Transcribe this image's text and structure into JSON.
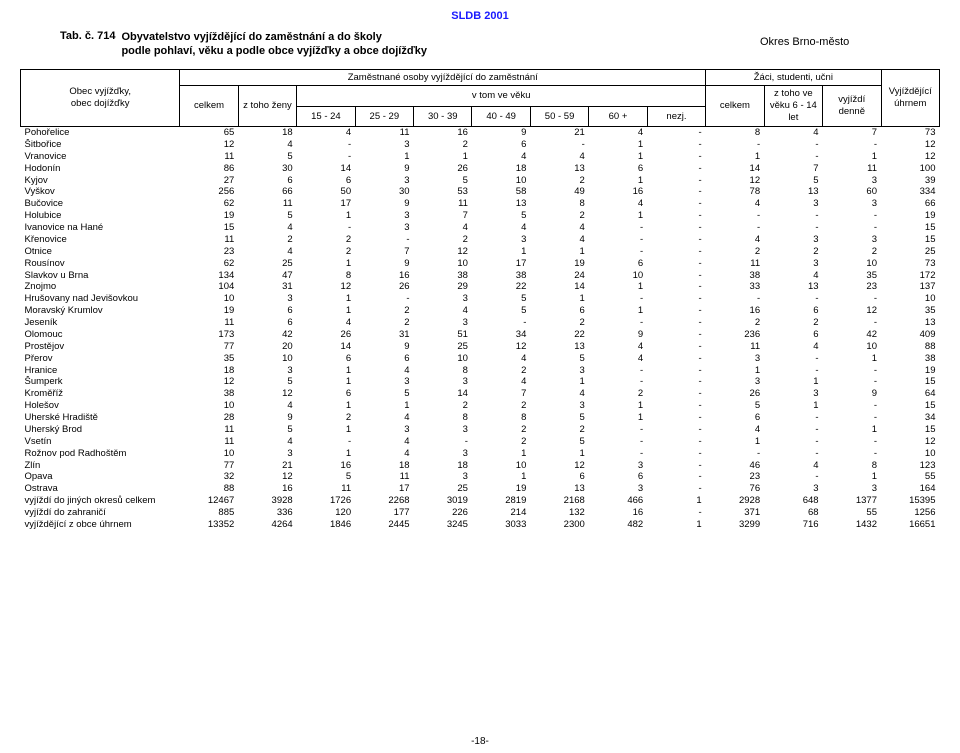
{
  "header": "SLDB 2001",
  "table_label": "Tab. č. 714",
  "title_line1": "Obyvatelstvo vyjíždějící do zaměstnání a do školy",
  "title_line2": "podle pohlaví, věku a podle obce vyjížďky a obce dojížďky",
  "okres": "Okres Brno-město",
  "footer": "-18-",
  "colhead": {
    "rowlabel_l1": "Obec vyjížďky,",
    "rowlabel_l2": "obec dojížďky",
    "zam_group": "Zaměstnané osoby vyjíždějící do zaměstnání",
    "celkem": "celkem",
    "z_toho_zeny": "z toho ženy",
    "v_tom_veku": "v tom ve věku",
    "age_15_24": "15 - 24",
    "age_25_29": "25 - 29",
    "age_30_39": "30 - 39",
    "age_40_49": "40 - 49",
    "age_50_59": "50 - 59",
    "age_60p": "60 +",
    "nezj": "nezj.",
    "zaci_group": "Žáci, studenti, učni",
    "z_toho_6_14_l1": "z toho ve",
    "z_toho_6_14_l2": "věku 6 - 14",
    "z_toho_6_14_l3": "let",
    "vyjizdi_l1": "vyjíždí",
    "vyjizdi_l2": "denně",
    "uhrnem_l1": "Vyjíždějící",
    "uhrnem_l2": "úhrnem"
  },
  "rows": [
    {
      "label": "Pohořelice",
      "v": [
        "65",
        "18",
        "4",
        "11",
        "16",
        "9",
        "21",
        "4",
        "-",
        "8",
        "4",
        "7",
        "73"
      ]
    },
    {
      "label": "Šitbořice",
      "v": [
        "12",
        "4",
        "-",
        "3",
        "2",
        "6",
        "-",
        "1",
        "-",
        "-",
        "-",
        "-",
        "12"
      ]
    },
    {
      "label": "Vranovice",
      "v": [
        "11",
        "5",
        "-",
        "1",
        "1",
        "4",
        "4",
        "1",
        "-",
        "1",
        "-",
        "1",
        "12"
      ]
    },
    {
      "label": "Hodonín",
      "v": [
        "86",
        "30",
        "14",
        "9",
        "26",
        "18",
        "13",
        "6",
        "-",
        "14",
        "7",
        "11",
        "100"
      ]
    },
    {
      "label": "Kyjov",
      "v": [
        "27",
        "6",
        "6",
        "3",
        "5",
        "10",
        "2",
        "1",
        "-",
        "12",
        "5",
        "3",
        "39"
      ]
    },
    {
      "label": "Vyškov",
      "v": [
        "256",
        "66",
        "50",
        "30",
        "53",
        "58",
        "49",
        "16",
        "-",
        "78",
        "13",
        "60",
        "334"
      ]
    },
    {
      "label": "Bučovice",
      "v": [
        "62",
        "11",
        "17",
        "9",
        "11",
        "13",
        "8",
        "4",
        "-",
        "4",
        "3",
        "3",
        "66"
      ]
    },
    {
      "label": "Holubice",
      "v": [
        "19",
        "5",
        "1",
        "3",
        "7",
        "5",
        "2",
        "1",
        "-",
        "-",
        "-",
        "-",
        "19"
      ]
    },
    {
      "label": "Ivanovice na Hané",
      "v": [
        "15",
        "4",
        "-",
        "3",
        "4",
        "4",
        "4",
        "-",
        "-",
        "-",
        "-",
        "-",
        "15"
      ]
    },
    {
      "label": "Křenovice",
      "v": [
        "11",
        "2",
        "2",
        "-",
        "2",
        "3",
        "4",
        "-",
        "-",
        "4",
        "3",
        "3",
        "15"
      ]
    },
    {
      "label": "Otnice",
      "v": [
        "23",
        "4",
        "2",
        "7",
        "12",
        "1",
        "1",
        "-",
        "-",
        "2",
        "2",
        "2",
        "25"
      ]
    },
    {
      "label": "Rousínov",
      "v": [
        "62",
        "25",
        "1",
        "9",
        "10",
        "17",
        "19",
        "6",
        "-",
        "11",
        "3",
        "10",
        "73"
      ]
    },
    {
      "label": "Slavkov u Brna",
      "v": [
        "134",
        "47",
        "8",
        "16",
        "38",
        "38",
        "24",
        "10",
        "-",
        "38",
        "4",
        "35",
        "172"
      ]
    },
    {
      "label": "Znojmo",
      "v": [
        "104",
        "31",
        "12",
        "26",
        "29",
        "22",
        "14",
        "1",
        "-",
        "33",
        "13",
        "23",
        "137"
      ]
    },
    {
      "label": "Hrušovany nad Jevišovkou",
      "v": [
        "10",
        "3",
        "1",
        "-",
        "3",
        "5",
        "1",
        "-",
        "-",
        "-",
        "-",
        "-",
        "10"
      ]
    },
    {
      "label": "Moravský Krumlov",
      "v": [
        "19",
        "6",
        "1",
        "2",
        "4",
        "5",
        "6",
        "1",
        "-",
        "16",
        "6",
        "12",
        "35"
      ]
    },
    {
      "label": "Jeseník",
      "v": [
        "11",
        "6",
        "4",
        "2",
        "3",
        "-",
        "2",
        "-",
        "-",
        "2",
        "2",
        "-",
        "13"
      ]
    },
    {
      "label": "Olomouc",
      "v": [
        "173",
        "42",
        "26",
        "31",
        "51",
        "34",
        "22",
        "9",
        "-",
        "236",
        "6",
        "42",
        "409"
      ]
    },
    {
      "label": "Prostějov",
      "v": [
        "77",
        "20",
        "14",
        "9",
        "25",
        "12",
        "13",
        "4",
        "-",
        "11",
        "4",
        "10",
        "88"
      ]
    },
    {
      "label": "Přerov",
      "v": [
        "35",
        "10",
        "6",
        "6",
        "10",
        "4",
        "5",
        "4",
        "-",
        "3",
        "-",
        "1",
        "38"
      ]
    },
    {
      "label": "Hranice",
      "v": [
        "18",
        "3",
        "1",
        "4",
        "8",
        "2",
        "3",
        "-",
        "-",
        "1",
        "-",
        "-",
        "19"
      ]
    },
    {
      "label": "Šumperk",
      "v": [
        "12",
        "5",
        "1",
        "3",
        "3",
        "4",
        "1",
        "-",
        "-",
        "3",
        "1",
        "-",
        "15"
      ]
    },
    {
      "label": "Kroměříž",
      "v": [
        "38",
        "12",
        "6",
        "5",
        "14",
        "7",
        "4",
        "2",
        "-",
        "26",
        "3",
        "9",
        "64"
      ]
    },
    {
      "label": "Holešov",
      "v": [
        "10",
        "4",
        "1",
        "1",
        "2",
        "2",
        "3",
        "1",
        "-",
        "5",
        "1",
        "-",
        "15"
      ]
    },
    {
      "label": "Uherské Hradiště",
      "v": [
        "28",
        "9",
        "2",
        "4",
        "8",
        "8",
        "5",
        "1",
        "-",
        "6",
        "-",
        "-",
        "34"
      ]
    },
    {
      "label": "Uherský Brod",
      "v": [
        "11",
        "5",
        "1",
        "3",
        "3",
        "2",
        "2",
        "-",
        "-",
        "4",
        "-",
        "1",
        "15"
      ]
    },
    {
      "label": "Vsetín",
      "v": [
        "11",
        "4",
        "-",
        "4",
        "-",
        "2",
        "5",
        "-",
        "-",
        "1",
        "-",
        "-",
        "12"
      ]
    },
    {
      "label": "Rožnov pod Radhoštěm",
      "v": [
        "10",
        "3",
        "1",
        "4",
        "3",
        "1",
        "1",
        "-",
        "-",
        "-",
        "-",
        "-",
        "10"
      ]
    },
    {
      "label": "Zlín",
      "v": [
        "77",
        "21",
        "16",
        "18",
        "18",
        "10",
        "12",
        "3",
        "-",
        "46",
        "4",
        "8",
        "123"
      ]
    },
    {
      "label": "Opava",
      "v": [
        "32",
        "12",
        "5",
        "11",
        "3",
        "1",
        "6",
        "6",
        "-",
        "23",
        "-",
        "1",
        "55"
      ]
    },
    {
      "label": "Ostrava",
      "v": [
        "88",
        "16",
        "11",
        "17",
        "25",
        "19",
        "13",
        "3",
        "-",
        "76",
        "3",
        "3",
        "164"
      ]
    },
    {
      "label": "vyjíždí do jiných okresů celkem",
      "v": [
        "12467",
        "3928",
        "1726",
        "2268",
        "3019",
        "2819",
        "2168",
        "466",
        "1",
        "2928",
        "648",
        "1377",
        "15395"
      ]
    },
    {
      "label": "vyjíždí do zahraničí",
      "v": [
        "885",
        "336",
        "120",
        "177",
        "226",
        "214",
        "132",
        "16",
        "-",
        "371",
        "68",
        "55",
        "1256"
      ]
    },
    {
      "label": "vyjíždějící z obce úhrnem",
      "v": [
        "13352",
        "4264",
        "1846",
        "2445",
        "3245",
        "3033",
        "2300",
        "482",
        "1",
        "3299",
        "716",
        "1432",
        "16651"
      ]
    }
  ]
}
